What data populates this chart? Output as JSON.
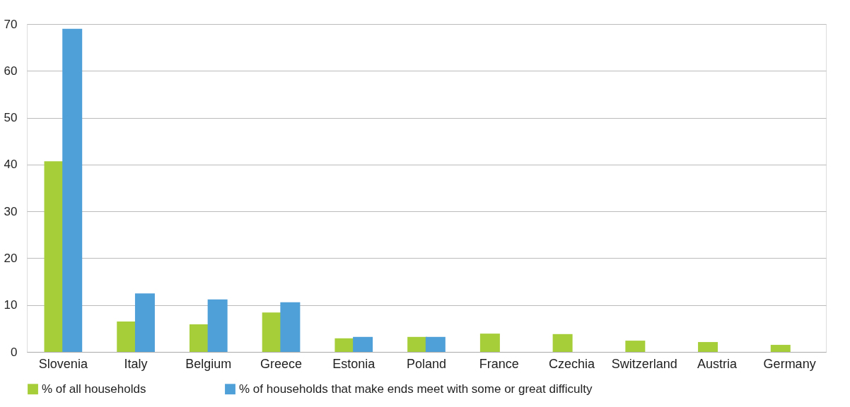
{
  "chart_data": {
    "type": "bar",
    "categories": [
      "Slovenia",
      "Italy",
      "Belgium",
      "Greece",
      "Estonia",
      "Poland",
      "France",
      "Czechia",
      "Switzerland",
      "Austria",
      "Germany"
    ],
    "series": [
      {
        "name": "% of all households",
        "color": "#a6ce39",
        "values": [
          40.7,
          6.5,
          5.9,
          8.4,
          2.9,
          3.2,
          3.9,
          3.8,
          2.4,
          2.1,
          1.5
        ]
      },
      {
        "name": "% of households that make ends meet with some or great difficulty",
        "color": "#4f9fd8",
        "values": [
          69,
          12.5,
          11.2,
          10.6,
          3.2,
          3.2,
          null,
          null,
          null,
          null,
          null
        ]
      }
    ],
    "ylim": [
      0,
      70
    ],
    "yticks": [
      0,
      10,
      20,
      30,
      40,
      50,
      60,
      70
    ],
    "grid": "y",
    "legend": "bottom"
  }
}
